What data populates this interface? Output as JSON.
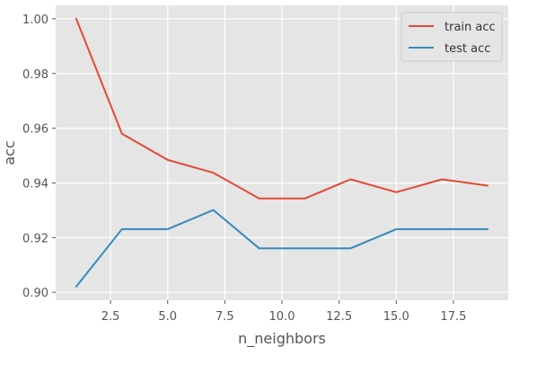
{
  "chart_data": {
    "type": "line",
    "xlabel": "n_neighbors",
    "ylabel": "acc",
    "xlim": [
      0.1,
      19.9
    ],
    "ylim": [
      0.8971,
      1.0049
    ],
    "xticks": [
      2.5,
      5.0,
      7.5,
      10.0,
      12.5,
      15.0,
      17.5
    ],
    "xtick_labels": [
      "2.5",
      "5.0",
      "7.5",
      "10.0",
      "12.5",
      "15.0",
      "17.5"
    ],
    "yticks": [
      0.9,
      0.92,
      0.94,
      0.96,
      0.98,
      1.0
    ],
    "ytick_labels": [
      "0.90",
      "0.92",
      "0.94",
      "0.96",
      "0.98",
      "1.00"
    ],
    "grid": true,
    "legend_position": "top-right",
    "x": [
      1,
      3,
      5,
      7,
      9,
      11,
      13,
      15,
      17,
      19
    ],
    "series": [
      {
        "name": "train acc",
        "color": "#E24A33",
        "values": [
          1.0,
          0.958,
          0.9484,
          0.9437,
          0.9343,
          0.9343,
          0.9413,
          0.9366,
          0.9413,
          0.939
        ]
      },
      {
        "name": "test acc",
        "color": "#348ABD",
        "values": [
          0.9021,
          0.9231,
          0.9231,
          0.9301,
          0.9161,
          0.9161,
          0.9161,
          0.9231,
          0.9231,
          0.9231
        ]
      }
    ]
  },
  "colors": {
    "plot_background": "#E5E5E5",
    "grid": "#FFFFFF"
  }
}
